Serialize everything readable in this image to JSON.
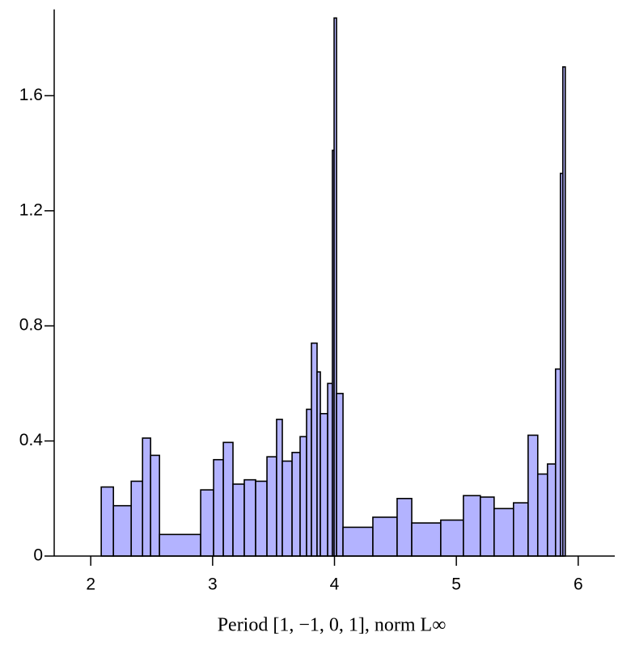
{
  "chart_data": {
    "type": "histogram",
    "xlabel": "Period [1, −1, 0, 1], norm L∞",
    "bins": [
      2.086,
      2.186,
      2.332,
      2.425,
      2.491,
      2.564,
      2.902,
      3.008,
      3.088,
      3.167,
      3.26,
      3.353,
      3.446,
      3.525,
      3.572,
      3.652,
      3.718,
      3.771,
      3.811,
      3.857,
      3.884,
      3.944,
      3.983,
      3.997,
      4.017,
      4.07,
      4.315,
      4.514,
      4.634,
      4.872,
      5.058,
      5.197,
      5.31,
      5.469,
      5.589,
      5.668,
      5.748,
      5.814,
      5.854,
      5.874,
      5.894
    ],
    "values": [
      0.24,
      0.175,
      0.26,
      0.41,
      0.35,
      0.075,
      0.23,
      0.335,
      0.395,
      0.25,
      0.265,
      0.26,
      0.345,
      0.475,
      0.33,
      0.36,
      0.415,
      0.51,
      0.74,
      0.64,
      0.495,
      0.6,
      1.41,
      1.87,
      0.565,
      0.1,
      0.135,
      0.2,
      0.115,
      0.125,
      0.21,
      0.205,
      0.165,
      0.185,
      0.42,
      0.285,
      0.32,
      0.65,
      1.33,
      1.7
    ],
    "color": "#b3b3ff",
    "edgecolor": "#000000",
    "xlim": [
      1.7,
      6.3
    ],
    "xticks": [
      2,
      3,
      4,
      5,
      6
    ],
    "ylim": [
      0,
      1.9
    ],
    "yticks": [
      0,
      0.4,
      0.8,
      1.2,
      1.6
    ]
  }
}
